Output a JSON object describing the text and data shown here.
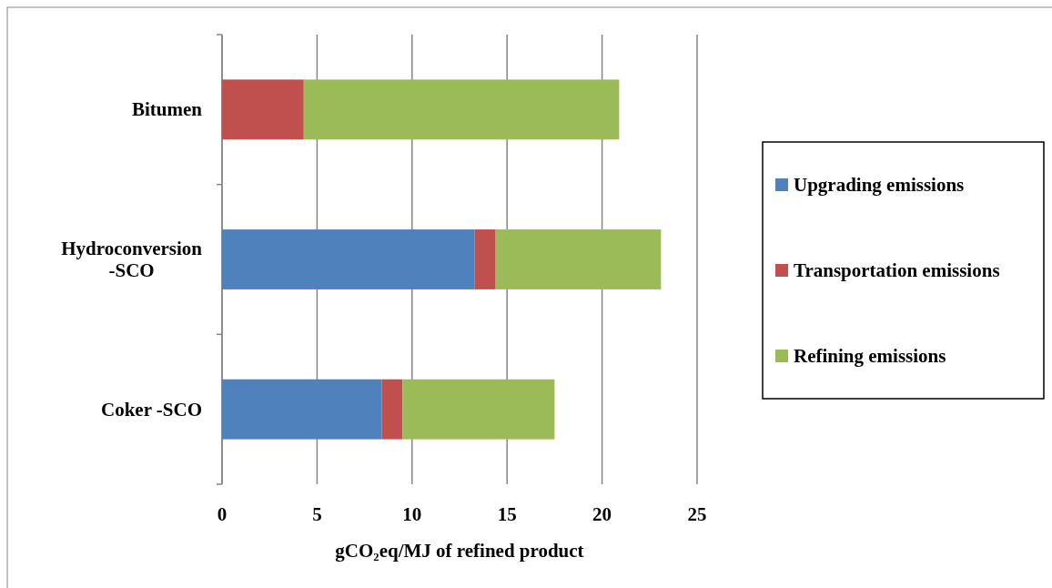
{
  "chart_data": {
    "type": "bar",
    "orientation": "horizontal",
    "stacked": true,
    "categories": [
      "Bitumen",
      "Hydroconversion -SCO",
      "Coker -SCO"
    ],
    "series": [
      {
        "name": "Upgrading emissions",
        "color": "#4f81bd",
        "values": [
          0,
          13.3,
          8.4
        ]
      },
      {
        "name": "Transportation emissions",
        "color": "#c0504d",
        "values": [
          4.3,
          1.1,
          1.1
        ]
      },
      {
        "name": "Refining emissions",
        "color": "#9bbb59",
        "values": [
          16.6,
          8.7,
          8.0
        ]
      }
    ],
    "xlim": [
      0,
      25
    ],
    "xticks": [
      0,
      5,
      10,
      15,
      20,
      25
    ],
    "xlabel": "gCO₂eq/MJ of refined product",
    "grid": "x",
    "legend": "right"
  }
}
